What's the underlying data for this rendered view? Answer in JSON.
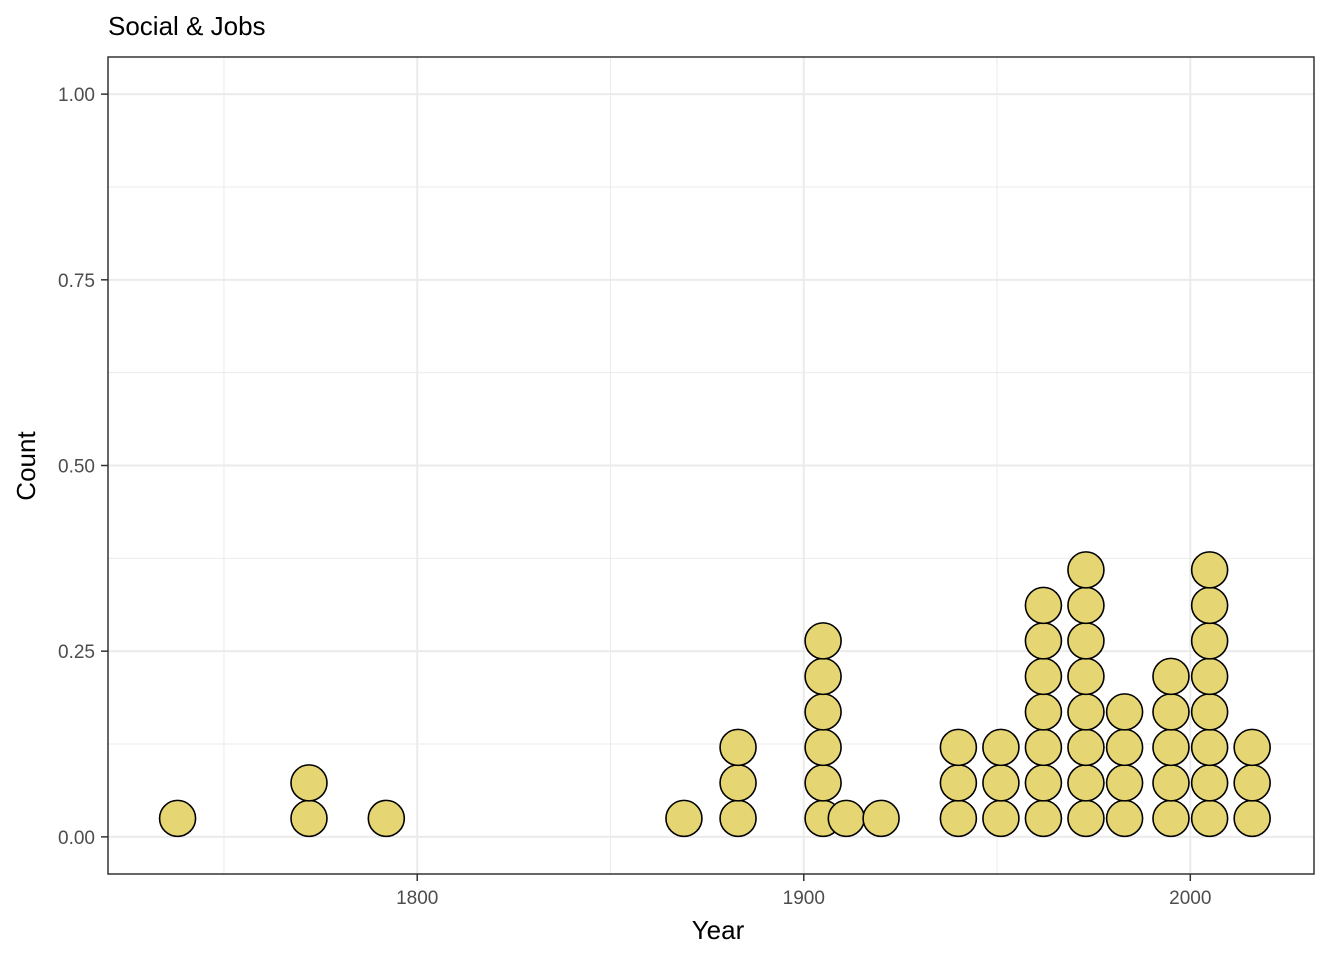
{
  "chart_data": {
    "type": "scatter",
    "subtype": "dotplot",
    "title": "Social & Jobs",
    "xlabel": "Year",
    "ylabel": "Count",
    "xlim": [
      1720,
      2032
    ],
    "ylim": [
      -0.05,
      1.05
    ],
    "xticks": [
      1800,
      1900,
      2000
    ],
    "xtick_labels": [
      "1800",
      "1900",
      "2000"
    ],
    "yticks": [
      0,
      0.25,
      0.5,
      0.75,
      1.0
    ],
    "ytick_labels": [
      "0.00",
      "0.25",
      "0.50",
      "0.75",
      "1.00"
    ],
    "grid": true,
    "legend": "none",
    "dot_color": "#e6d673",
    "dot_outline": "#000000",
    "series": [
      {
        "x": [
          1738,
          1772,
          1792,
          1869,
          1883,
          1905,
          1911,
          1920,
          1940,
          1951,
          1962,
          1973,
          1983,
          1995,
          2005,
          2016
        ],
        "count": [
          1,
          2,
          1,
          1,
          3,
          6,
          1,
          1,
          3,
          3,
          7,
          8,
          4,
          5,
          8,
          3
        ]
      }
    ]
  }
}
